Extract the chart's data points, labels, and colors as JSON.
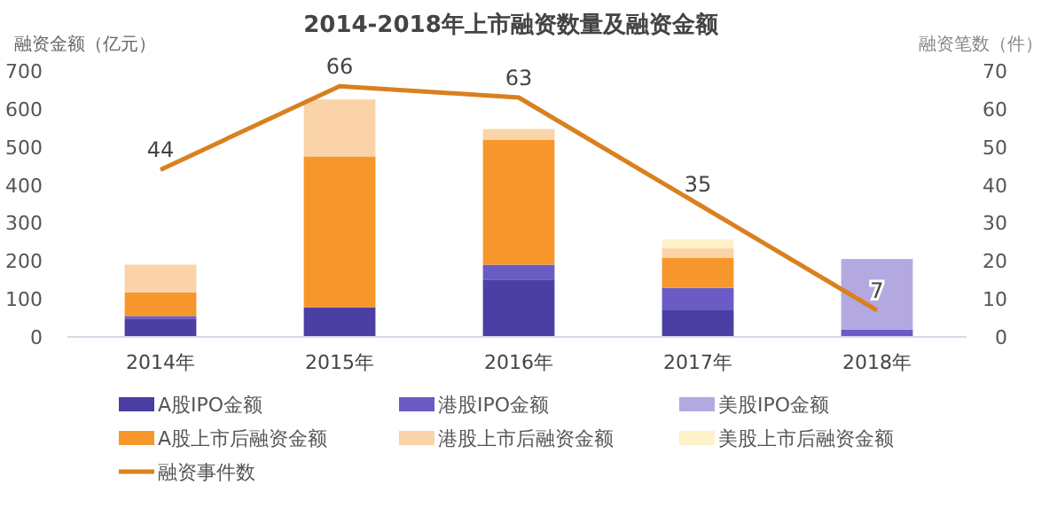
{
  "chart_data": {
    "type": "bar",
    "title": "2014-2018年上市融资数量及融资金额",
    "ylabel": "融资金额（亿元）",
    "y2label": "融资笔数（件）",
    "categories": [
      "2014年",
      "2015年",
      "2016年",
      "2017年",
      "2018年"
    ],
    "stacked": true,
    "ylim": [
      0,
      700
    ],
    "yticks": [
      0,
      100,
      200,
      300,
      400,
      500,
      600,
      700
    ],
    "y2lim": [
      0,
      70
    ],
    "y2ticks": [
      0,
      10,
      20,
      30,
      40,
      50,
      60,
      70
    ],
    "legend": "bottom",
    "grid": false,
    "series": [
      {
        "name": "A股IPO金额",
        "color": "#4b3fa3",
        "values": [
          47,
          78,
          151,
          70,
          null
        ]
      },
      {
        "name": "港股IPO金额",
        "color": "#6a5cc4",
        "values": [
          8,
          null,
          39,
          59,
          19
        ]
      },
      {
        "name": "美股IPO金额",
        "color": "#b3a9e0",
        "values": [
          null,
          null,
          null,
          null,
          186
        ]
      },
      {
        "name": "A股上市后融资金额",
        "color": "#f7962b",
        "values": [
          62,
          397,
          328,
          79,
          null
        ]
      },
      {
        "name": "港股上市后融资金额",
        "color": "#fad3a8",
        "values": [
          73,
          150,
          29,
          25,
          null
        ]
      },
      {
        "name": "美股上市后融资金额",
        "color": "#fdf1c8",
        "values": [
          null,
          null,
          null,
          24,
          null
        ]
      },
      {
        "name": "融资事件数",
        "type": "line",
        "axis": "y2",
        "color": "#d9801f",
        "values": [
          44,
          66,
          63,
          35,
          7
        ],
        "value_labels": [
          "44",
          "66",
          "63",
          "35",
          "7"
        ]
      }
    ]
  }
}
